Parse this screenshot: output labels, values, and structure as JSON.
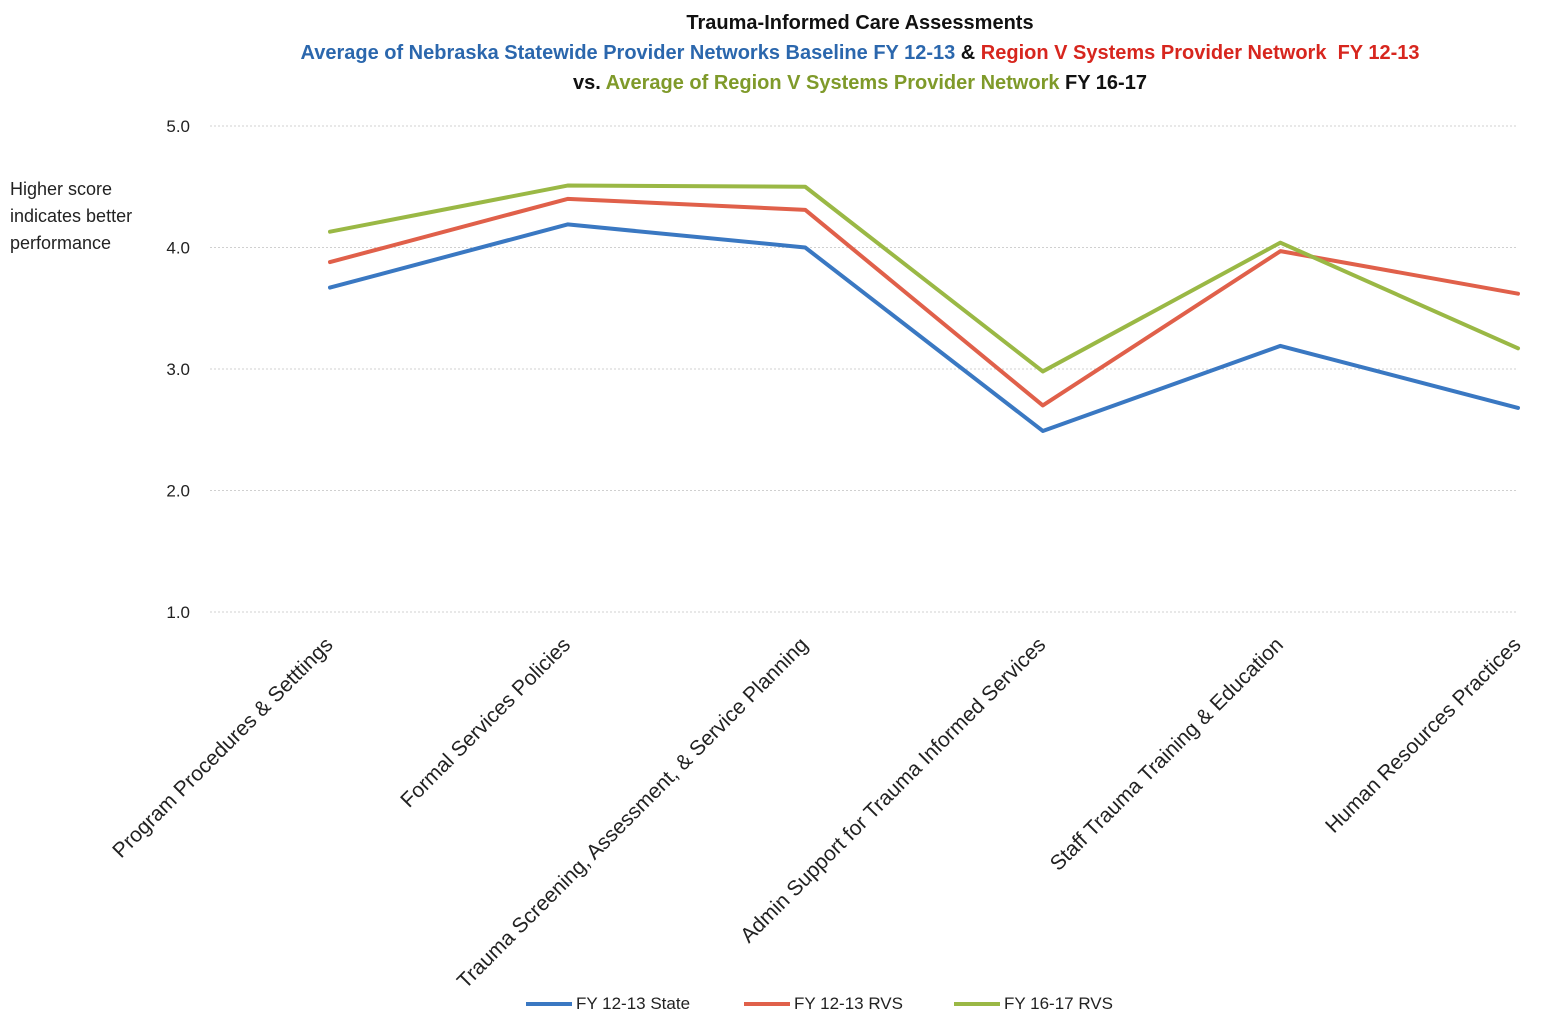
{
  "title": {
    "line1": "Trauma-Informed Care Assessments",
    "line2_blue": "Average of Nebraska Statewide Provider Networks Baseline FY 12-13",
    "line2_amp": " & ",
    "line2_red": "Region V Systems Provider Network  FY 12-13",
    "line3_vs": "vs. ",
    "line3_green": "Average of Region V Systems Provider Network",
    "line3_fy": " FY 16-17"
  },
  "side_note": "Higher score indicates better performance",
  "colors": {
    "state": "#3a78c2",
    "rvs_1213": "#e0604a",
    "rvs_1617": "#9ab845",
    "grid": "#d0d0d0"
  },
  "chart_data": {
    "type": "line",
    "title": "Trauma-Informed Care Assessments",
    "xlabel": "",
    "ylabel": "",
    "ylim": [
      1.0,
      5.0
    ],
    "yticks": [
      "1.0",
      "2.0",
      "3.0",
      "4.0",
      "5.0"
    ],
    "grid": true,
    "legend_position": "bottom",
    "categories": [
      "Program Procedures & Setttings",
      "Formal Services Policies",
      "Trauma Screening, Assessment, & Service Planning",
      "Admin Support for Trauma Informed Services",
      "Staff Trauma Training & Education",
      "Human Resources Practices"
    ],
    "series": [
      {
        "name": "FY 12-13 State",
        "values": [
          3.67,
          4.19,
          4.0,
          2.49,
          3.19,
          2.68
        ]
      },
      {
        "name": "FY 12-13 RVS",
        "values": [
          3.88,
          4.4,
          4.31,
          2.7,
          3.97,
          3.62
        ]
      },
      {
        "name": "FY 16-17 RVS",
        "values": [
          4.13,
          4.51,
          4.5,
          2.98,
          4.04,
          3.17
        ]
      }
    ]
  }
}
